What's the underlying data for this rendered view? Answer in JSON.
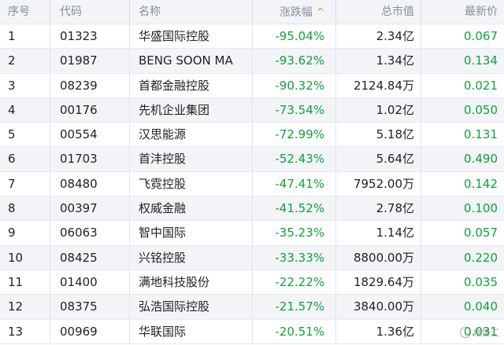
{
  "table": {
    "headers": {
      "index": "序号",
      "code": "代码",
      "name": "名称",
      "change": "涨跌幅",
      "market_cap": "总市值",
      "price": "最新价"
    },
    "sort_indicator": "^",
    "rows": [
      {
        "index": "1",
        "code": "01323",
        "name": "华盛国际控股",
        "change": "-95.04%",
        "market_cap": "2.34亿",
        "price": "0.067"
      },
      {
        "index": "2",
        "code": "01987",
        "name": "BENG SOON MA",
        "change": "-93.62%",
        "market_cap": "1.34亿",
        "price": "0.134"
      },
      {
        "index": "3",
        "code": "08239",
        "name": "首都金融控股",
        "change": "-90.32%",
        "market_cap": "2124.84万",
        "price": "0.021"
      },
      {
        "index": "4",
        "code": "00176",
        "name": "先机企业集团",
        "change": "-73.54%",
        "market_cap": "1.02亿",
        "price": "0.050"
      },
      {
        "index": "5",
        "code": "00554",
        "name": "汉思能源",
        "change": "-72.99%",
        "market_cap": "5.18亿",
        "price": "0.131"
      },
      {
        "index": "6",
        "code": "01703",
        "name": "首沣控股",
        "change": "-52.43%",
        "market_cap": "5.64亿",
        "price": "0.490"
      },
      {
        "index": "7",
        "code": "08480",
        "name": "飞霓控股",
        "change": "-47.41%",
        "market_cap": "7952.00万",
        "price": "0.142"
      },
      {
        "index": "8",
        "code": "00397",
        "name": "权威金融",
        "change": "-41.52%",
        "market_cap": "2.78亿",
        "price": "0.100"
      },
      {
        "index": "9",
        "code": "06063",
        "name": "智中国际",
        "change": "-35.23%",
        "market_cap": "1.14亿",
        "price": "0.057"
      },
      {
        "index": "10",
        "code": "08425",
        "name": "兴铭控股",
        "change": "-33.33%",
        "market_cap": "8800.00万",
        "price": "0.220"
      },
      {
        "index": "11",
        "code": "01400",
        "name": "满地科技股份",
        "change": "-22.22%",
        "market_cap": "1829.64万",
        "price": "0.035"
      },
      {
        "index": "12",
        "code": "08375",
        "name": "弘浩国际控股",
        "change": "-21.57%",
        "market_cap": "3840.00万",
        "price": "0.040"
      },
      {
        "index": "13",
        "code": "00969",
        "name": "华联国际",
        "change": "-20.51%",
        "market_cap": "1.36亿",
        "price": "0.031"
      }
    ]
  },
  "watermark": {
    "text": "格隆汇"
  },
  "colors": {
    "down": "#0fa23c",
    "header_bg": "#f2f4f7",
    "sort_arrow": "#ff7a00"
  }
}
